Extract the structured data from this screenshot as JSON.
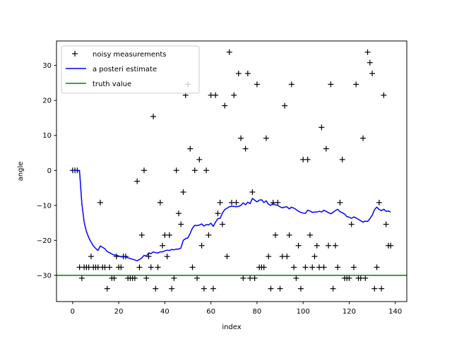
{
  "chart_data": {
    "type": "line",
    "xlabel": "index",
    "ylabel": "angle",
    "xlim": [
      -7,
      145
    ],
    "ylim": [
      -37.5,
      37
    ],
    "xticks": [
      0,
      20,
      40,
      60,
      80,
      100,
      120,
      140
    ],
    "yticks": [
      -30,
      -20,
      -10,
      0,
      10,
      20,
      30
    ],
    "grid": false,
    "legend_position": "top-left",
    "series": [
      {
        "name": "noisy measurements",
        "style": "markers",
        "marker": "+",
        "color": "#000000",
        "x": [
          0,
          1,
          2,
          3,
          4,
          5,
          6,
          7,
          8,
          9,
          10,
          11,
          12,
          13,
          14,
          15,
          16,
          17,
          18,
          19,
          20,
          21,
          22,
          23,
          24,
          25,
          26,
          27,
          28,
          29,
          30,
          31,
          32,
          33,
          34,
          35,
          36,
          37,
          38,
          39,
          40,
          41,
          42,
          43,
          44,
          45,
          46,
          47,
          48,
          49,
          50,
          51,
          52,
          53,
          54,
          55,
          56,
          57,
          58,
          59,
          60,
          61,
          62,
          63,
          64,
          65,
          66,
          67,
          68,
          69,
          70,
          71,
          72,
          73,
          74,
          75,
          76,
          77,
          78,
          79,
          80,
          81,
          82,
          83,
          84,
          85,
          86,
          87,
          88,
          89,
          90,
          91,
          92,
          93,
          94,
          95,
          96,
          97,
          98,
          99,
          100,
          101,
          102,
          103,
          104,
          105,
          106,
          107,
          108,
          109,
          110,
          111,
          112,
          113,
          114,
          115,
          116,
          117,
          118,
          119,
          120,
          121,
          122,
          123,
          124,
          125,
          126,
          127,
          128,
          129,
          130,
          131,
          132,
          133,
          134,
          135,
          136,
          137,
          138
        ],
        "values": [
          0,
          0,
          0,
          -27.7,
          -30.8,
          -27.7,
          -27.7,
          -27.7,
          -24.6,
          -27.7,
          -27.7,
          -27.7,
          -9.2,
          -27.7,
          -27.7,
          -33.8,
          -27.7,
          -30.8,
          -30.8,
          -24.6,
          -27.7,
          -27.7,
          -24.6,
          -24.6,
          -30.8,
          -30.8,
          -30.8,
          -30.8,
          -3.1,
          -27.7,
          -18.5,
          0,
          -30.8,
          -24.6,
          -27.7,
          15.4,
          -33.8,
          -27.7,
          -9.2,
          -21.5,
          -18.5,
          -24.6,
          -18.5,
          -33.8,
          -30.8,
          0,
          -12.3,
          -15.4,
          -6.2,
          21.5,
          24.6,
          6.2,
          -27.7,
          0,
          -30.8,
          3.1,
          -21.5,
          -33.8,
          0,
          -18.5,
          21.5,
          -33.8,
          21.5,
          -12.3,
          -9.2,
          -15.4,
          18.5,
          -24.6,
          33.8,
          -9.2,
          21.5,
          -9.2,
          27.7,
          9.2,
          -30.8,
          6.2,
          27.7,
          -30.8,
          -6.2,
          -30.8,
          24.6,
          -27.7,
          -27.7,
          -27.7,
          9.2,
          -24.6,
          -33.8,
          -9.2,
          -18.5,
          -9.2,
          -33.8,
          -24.6,
          18.5,
          -24.6,
          -18.5,
          24.6,
          -27.7,
          -30.8,
          -21.5,
          -33.8,
          3.1,
          -27.7,
          3.1,
          -18.5,
          -27.7,
          -24.6,
          -21.5,
          -27.7,
          12.3,
          -27.7,
          6.2,
          -21.5,
          24.6,
          -33.8,
          -21.5,
          -27.7,
          -9.2,
          3.1,
          -30.8,
          -30.8,
          -30.8,
          -15.4,
          -27.7,
          24.6,
          -30.8,
          -30.8,
          9.2,
          -30.8,
          33.8,
          30.8,
          27.7,
          -33.8,
          -27.7,
          -9.2,
          -33.8,
          21.5,
          -15.4,
          -21.5,
          -21.5
        ]
      },
      {
        "name": "a posteri estimate",
        "style": "line",
        "color": "#0000ff",
        "x": [
          0,
          1,
          2,
          3,
          4,
          5,
          6,
          7,
          8,
          9,
          10,
          11,
          12,
          13,
          14,
          15,
          16,
          17,
          18,
          19,
          20,
          21,
          22,
          23,
          24,
          25,
          26,
          27,
          28,
          29,
          30,
          31,
          32,
          33,
          34,
          35,
          36,
          37,
          38,
          39,
          40,
          41,
          42,
          43,
          44,
          45,
          46,
          47,
          48,
          49,
          50,
          51,
          52,
          53,
          54,
          55,
          56,
          57,
          58,
          59,
          60,
          61,
          62,
          63,
          64,
          65,
          66,
          67,
          68,
          69,
          70,
          71,
          72,
          73,
          74,
          75,
          76,
          77,
          78,
          79,
          80,
          81,
          82,
          83,
          84,
          85,
          86,
          87,
          88,
          89,
          90,
          91,
          92,
          93,
          94,
          95,
          96,
          97,
          98,
          99,
          100,
          101,
          102,
          103,
          104,
          105,
          106,
          107,
          108,
          109,
          110,
          111,
          112,
          113,
          114,
          115,
          116,
          117,
          118,
          119,
          120,
          121,
          122,
          123,
          124,
          125,
          126,
          127,
          128,
          129,
          130,
          131,
          132,
          133,
          134,
          135,
          136,
          137,
          138
        ],
        "values": [
          0,
          0,
          0,
          -0.2,
          -9.5,
          -14.8,
          -17.5,
          -19.2,
          -20.5,
          -21.6,
          -22.3,
          -22.9,
          -21.6,
          -22.0,
          -22.4,
          -23.2,
          -23.5,
          -23.9,
          -24.2,
          -24.2,
          -24.5,
          -24.7,
          -24.7,
          -24.7,
          -25.0,
          -25.2,
          -25.4,
          -25.6,
          -25.8,
          -25.5,
          -25.0,
          -24.3,
          -24.5,
          -23.6,
          -23.8,
          -23.3,
          -23.5,
          -23.6,
          -23.3,
          -23.3,
          -23.0,
          -22.8,
          -22.9,
          -22.6,
          -22.7,
          -22.5,
          -22.5,
          -22.2,
          -20.0,
          -19.5,
          -19.3,
          -18.0,
          -16.5,
          -15.7,
          -15.8,
          -15.6,
          -15.3,
          -15.9,
          -15.5,
          -15.6,
          -15.1,
          -16.0,
          -14.8,
          -13.8,
          -13.7,
          -12.2,
          -11.2,
          -10.8,
          -10.4,
          -10.3,
          -10.3,
          -10.4,
          -10.3,
          -10.0,
          -9.3,
          -9.8,
          -9.1,
          -9.5,
          -8.0,
          -8.5,
          -9.0,
          -8.5,
          -8.4,
          -9.2,
          -8.7,
          -9.7,
          -10.0,
          -9.4,
          -9.9,
          -10.0,
          -10.4,
          -10.7,
          -10.5,
          -10.4,
          -11.0,
          -10.5,
          -10.8,
          -11.2,
          -11.7,
          -12.0,
          -12.2,
          -12.3,
          -11.4,
          -11.6,
          -12.0,
          -11.9,
          -11.9,
          -11.7,
          -11.9,
          -11.4,
          -11.7,
          -12.1,
          -12.4,
          -12.0,
          -11.5,
          -11.1,
          -11.8,
          -12.1,
          -12.5,
          -13.2,
          -13.4,
          -13.7,
          -13.3,
          -13.6,
          -14.0,
          -14.4,
          -14.8,
          -14.5,
          -14.6,
          -13.8,
          -12.8,
          -11.2,
          -10.5,
          -11.2,
          -11.5,
          -11.1,
          -11.7,
          -11.6,
          -11.9
        ]
      },
      {
        "name": "truth value",
        "style": "hline",
        "color": "#008000",
        "value": -30
      }
    ]
  }
}
